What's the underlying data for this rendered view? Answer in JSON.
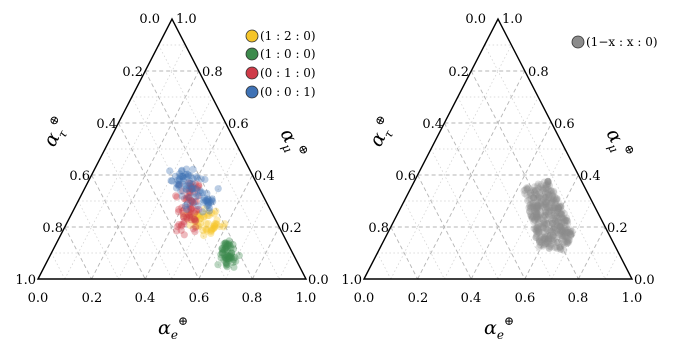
{
  "chart_data": [
    {
      "type": "scatter",
      "subtype": "ternary",
      "axes": {
        "bottom": {
          "label": "α",
          "label_sub": "e",
          "label_sup": "⊕",
          "ticks": [
            "0.0",
            "0.2",
            "0.4",
            "0.6",
            "0.8",
            "1.0"
          ]
        },
        "left": {
          "label": "α",
          "label_sub": "τ",
          "label_sup": "⊕",
          "ticks": [
            "0.0",
            "0.2",
            "0.4",
            "0.6",
            "0.8",
            "1.0"
          ]
        },
        "right": {
          "label": "α",
          "label_sub": "μ",
          "label_sup": "⊕",
          "ticks": [
            "0.0",
            "0.2",
            "0.4",
            "0.6",
            "0.8",
            "1.0"
          ]
        }
      },
      "grid": true,
      "legend_position": "top-right",
      "series": [
        {
          "name": "(1 : 2 : 0)",
          "color": "#f5c52a",
          "cloud": {
            "from": [
              0.45,
              0.25
            ],
            "to": [
              0.57,
              0.19
            ],
            "spread": [
              0.02,
              0.014
            ],
            "n": 55
          }
        },
        {
          "name": "(1 : 0 : 0)",
          "color": "#3d8a4c",
          "cloud": {
            "from": [
              0.69,
              0.06
            ],
            "to": [
              0.63,
              0.13
            ],
            "spread": [
              0.012,
              0.012
            ],
            "n": 60
          }
        },
        {
          "name": "(0 : 1 : 0)",
          "color": "#cf3b48",
          "cloud": {
            "from": [
              0.46,
              0.19
            ],
            "to": [
              0.39,
              0.37
            ],
            "spread": [
              0.02,
              0.014
            ],
            "n": 75
          }
        },
        {
          "name": "(0 : 0 : 1)",
          "color": "#3f72b5",
          "cloud": {
            "from": [
              0.32,
              0.42
            ],
            "to": [
              0.49,
              0.28
            ],
            "spread": [
              0.025,
              0.014
            ],
            "n": 80
          }
        }
      ]
    },
    {
      "type": "scatter",
      "subtype": "ternary",
      "axes": {
        "bottom": {
          "label": "α",
          "label_sub": "e",
          "label_sup": "⊕",
          "ticks": [
            "0.0",
            "0.2",
            "0.4",
            "0.6",
            "0.8",
            "1.0"
          ]
        },
        "left": {
          "label": "α",
          "label_sub": "τ",
          "label_sup": "⊕",
          "ticks": [
            "0.0",
            "0.2",
            "0.4",
            "0.6",
            "0.8",
            "1.0"
          ]
        },
        "right": {
          "label": "α",
          "label_sub": "μ",
          "label_sup": "⊕",
          "ticks": [
            "0.0",
            "0.2",
            "0.4",
            "0.6",
            "0.8",
            "1.0"
          ]
        }
      },
      "grid": true,
      "legend_position": "top-right",
      "series": [
        {
          "name": "(1−x : x : 0)",
          "color": "#8c8c8c",
          "region": [
            [
              0.42,
              0.35
            ],
            [
              0.5,
              0.38
            ],
            [
              0.7,
              0.17
            ],
            [
              0.69,
              0.11
            ],
            [
              0.59,
              0.12
            ]
          ],
          "n": 420
        }
      ]
    }
  ]
}
